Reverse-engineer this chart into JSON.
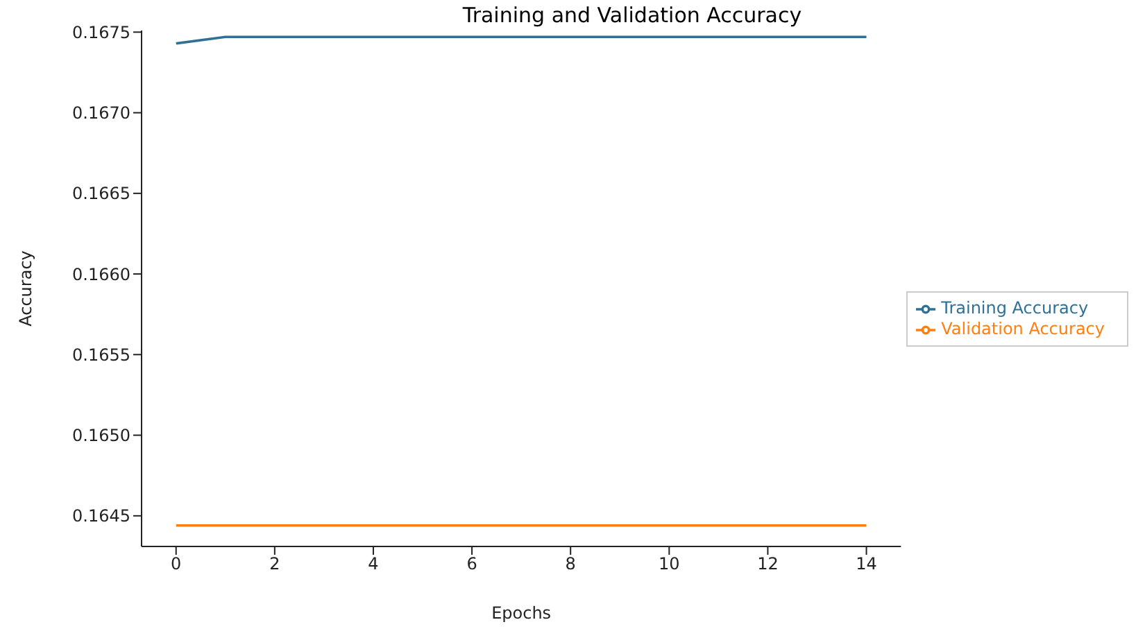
{
  "chart_data": {
    "type": "line",
    "title": "Training and Validation Accuracy",
    "xlabel": "Epochs",
    "ylabel": "Accuracy",
    "x": [
      0,
      1,
      2,
      3,
      4,
      5,
      6,
      7,
      8,
      9,
      10,
      11,
      12,
      13,
      14
    ],
    "series": [
      {
        "name": "Training Accuracy",
        "color": "#2f7196",
        "values": [
          0.16743,
          0.16747,
          0.16747,
          0.16747,
          0.16747,
          0.16747,
          0.16747,
          0.16747,
          0.16747,
          0.16747,
          0.16747,
          0.16747,
          0.16747,
          0.16747,
          0.16747
        ]
      },
      {
        "name": "Validation Accuracy",
        "color": "#ff7f0e",
        "values": [
          0.16444,
          0.16444,
          0.16444,
          0.16444,
          0.16444,
          0.16444,
          0.16444,
          0.16444,
          0.16444,
          0.16444,
          0.16444,
          0.16444,
          0.16444,
          0.16444,
          0.16444
        ]
      }
    ],
    "xlim": [
      -0.7,
      14.7
    ],
    "xticks": [
      0,
      2,
      4,
      6,
      8,
      10,
      12,
      14
    ],
    "ylim": [
      0.16431,
      0.16751
    ],
    "yticks": [
      0.1645,
      {
        "value": 0.165,
        "label": "0.1650"
      },
      0.1655,
      {
        "value": 0.166,
        "label": "0.1660"
      },
      0.1665,
      {
        "value": 0.167,
        "label": "0.1670"
      },
      0.1675
    ],
    "grid": false,
    "legend": "right",
    "marker": "none",
    "line_style": "solid"
  }
}
